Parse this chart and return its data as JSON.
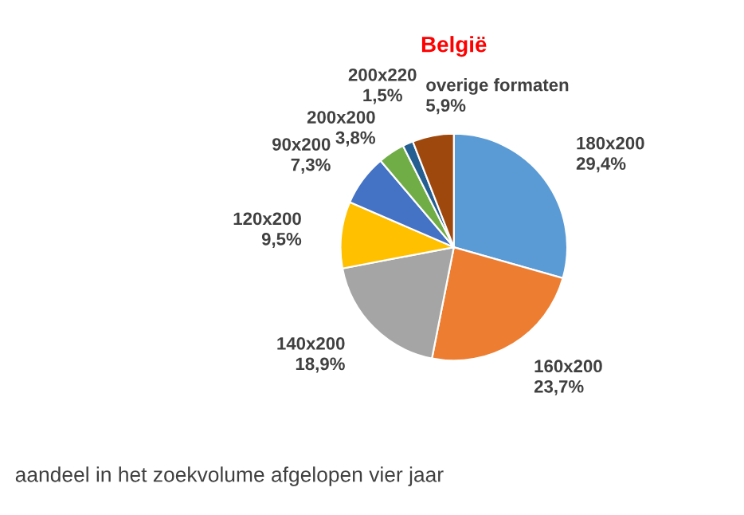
{
  "chart_data": {
    "type": "pie",
    "title": "België",
    "categories": [
      "180x200",
      "160x200",
      "140x200",
      "120x200",
      "90x200",
      "200x200",
      "200x220",
      "overige formaten"
    ],
    "values": [
      29.4,
      23.7,
      18.9,
      9.5,
      7.3,
      3.8,
      1.5,
      5.9
    ],
    "value_labels": [
      "29,4%",
      "23,7%",
      "18,9%",
      "9,5%",
      "7,3%",
      "3,8%",
      "1,5%",
      "5,9%"
    ],
    "colors": [
      "#5b9bd5",
      "#ed7d31",
      "#a5a5a5",
      "#ffc000",
      "#4472c4",
      "#70ad47",
      "#255e91",
      "#9e480e"
    ],
    "annotations": [
      "aandeel in het zoekvolume afgelopen vier jaar"
    ]
  }
}
